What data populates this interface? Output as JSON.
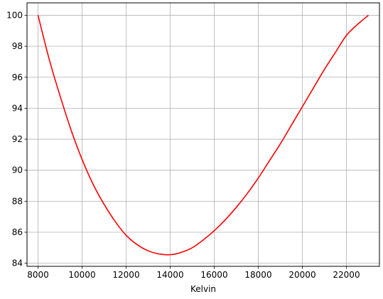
{
  "chart_data": {
    "type": "line",
    "title": "",
    "xlabel": "Kelvin",
    "ylabel": "",
    "xlim": [
      7500,
      23500
    ],
    "ylim": [
      83.8,
      100.8
    ],
    "grid": true,
    "x_ticks": [
      8000,
      10000,
      12000,
      14000,
      16000,
      18000,
      20000,
      22000
    ],
    "y_ticks": [
      84,
      86,
      88,
      90,
      92,
      94,
      96,
      98,
      100
    ],
    "x_tick_labels": [
      "8000",
      "10000",
      "12000",
      "14000",
      "16000",
      "18000",
      "20000",
      "22000"
    ],
    "y_tick_labels": [
      "84",
      "86",
      "88",
      "90",
      "92",
      "94",
      "96",
      "98",
      "100"
    ],
    "series": [
      {
        "color": "#ff0000",
        "x": [
          8000,
          8500,
          9000,
          9500,
          10000,
          10500,
          11000,
          11500,
          12000,
          12500,
          13000,
          13500,
          14000,
          14500,
          15000,
          15500,
          16000,
          16500,
          17000,
          17500,
          18000,
          18500,
          19000,
          19500,
          20000,
          20500,
          21000,
          21500,
          22000,
          22500,
          23000
        ],
        "y": [
          100.0,
          97.2,
          94.8,
          92.6,
          90.7,
          89.1,
          87.8,
          86.7,
          85.8,
          85.2,
          84.8,
          84.6,
          84.55,
          84.7,
          85.0,
          85.5,
          86.1,
          86.8,
          87.6,
          88.5,
          89.5,
          90.6,
          91.7,
          92.9,
          94.1,
          95.3,
          96.5,
          97.6,
          98.7,
          99.4,
          100.0
        ]
      }
    ]
  }
}
